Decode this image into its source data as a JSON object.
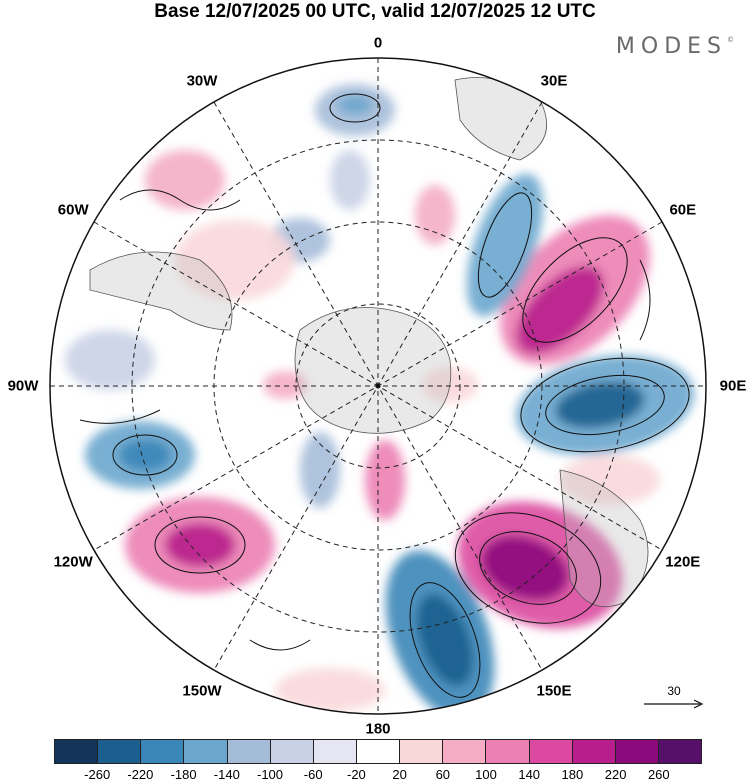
{
  "header": {
    "title": "Base 12/07/2025 00 UTC, valid 12/07/2025 12 UTC",
    "brand": "MODES",
    "brand_mark": "©"
  },
  "map": {
    "projection": "south polar stereographic",
    "pole": "South Pole",
    "shading": "divergent anomaly field, blue negative / pink-magenta positive",
    "gridlines": "dashed",
    "vectors": "wind streamlines",
    "longitude_labels": [
      "0",
      "30E",
      "60E",
      "90E",
      "120E",
      "150E",
      "180",
      "150W",
      "120W",
      "90W",
      "60W",
      "30W"
    ]
  },
  "reference_vector": {
    "label": "30"
  },
  "colorbar": {
    "colors": [
      "#14355a",
      "#1c5f8e",
      "#3a86b8",
      "#6aa6cd",
      "#a5bcd9",
      "#c9d1e6",
      "#e6e6f2",
      "#ffffff",
      "#f9d8da",
      "#f4adc4",
      "#ec7fb3",
      "#db4aa0",
      "#b81f8c",
      "#8c0a7c",
      "#561069"
    ],
    "tick_labels": [
      "-260",
      "-220",
      "-180",
      "-140",
      "-100",
      "-60",
      "-20",
      "20",
      "60",
      "100",
      "140",
      "180",
      "220",
      "260"
    ]
  }
}
